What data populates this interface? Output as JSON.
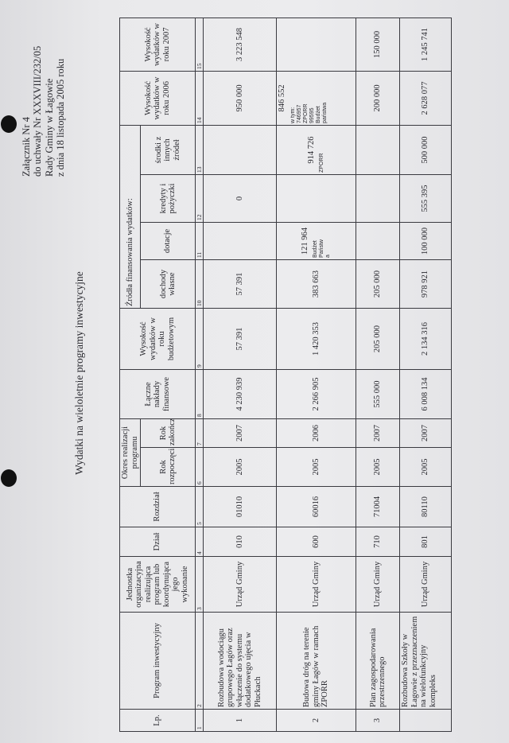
{
  "header": {
    "lines": [
      "Załącznik Nr 4",
      "do uchwały Nr XXXVIII/232/05",
      "Rady Gminy  w Łagowie",
      "z dnia 18 listopada 2005 roku"
    ],
    "title": "Wydatki na wieloletnie programy inwestycyjne"
  },
  "table": {
    "columns": {
      "lp": "Lp.",
      "program": "Program inwestycyjny",
      "jednostka": "Jednostka organizacyjna realizująca program lub koordynująca jego wykonanie",
      "dzial": "Dział",
      "rozdzial": "Rozdział",
      "okres": "Okres realizacji programu",
      "rok_rozp": "Rok rozpoczęcia",
      "rok_zak": "Rok zakończenia",
      "laczne": "Łączne nakłady finansowe",
      "wys_budzet": "Wysokość wydatków w roku budżetowym",
      "zrodla": "Źródła finansowania wydatków:",
      "dochody": "dochody własne",
      "dotacje": "dotacje",
      "kredyty": "kredyty i pożyczki",
      "srodki": "środki z innych źródeł",
      "wys_2006": "Wysokość wydatków w roku 2006",
      "wys_2007": "Wysokość wydatków w roku 2007"
    },
    "numbers": [
      "1",
      "2",
      "3",
      "4",
      "5",
      "6",
      "7",
      "8",
      "9",
      "10",
      "11",
      "12",
      "13",
      "14",
      "15"
    ],
    "rows": [
      {
        "cells": [
          "1",
          "Rozbudowa wodociągu grupowego Łagów oraz włączenie do systemu dodatkowego ujęcia w Płuckach",
          "Urząd Gminy",
          "010",
          "01010",
          "2005",
          "2007",
          "4 230 939",
          "57 391",
          "57 391",
          "",
          "0",
          "",
          "950 000",
          "3 223 548"
        ],
        "notes": [
          "",
          "",
          "",
          "",
          "",
          "",
          "",
          "",
          "",
          "",
          "",
          "",
          "",
          "",
          ""
        ]
      },
      {
        "cells": [
          "2",
          "Budowa dróg na terenie gminy Łagów w ramach ZPORR",
          "Urząd Gminy",
          "600",
          "60016",
          "2005",
          "2006",
          "2 266 905",
          "1 420 353",
          "383 663",
          "121 964",
          "",
          "914 726",
          "846 552",
          ""
        ],
        "notes": [
          "",
          "",
          "",
          "",
          "",
          "",
          "",
          "",
          "",
          "",
          "Budżet\nPaństw\na",
          "",
          "ZPORR",
          "w tym:\n746957\nZPORR\n99595\nBudżet\npaństwa",
          ""
        ]
      },
      {
        "cells": [
          "3",
          "Plan zagospodarowania przestrzennego",
          "Urząd Gminy",
          "710",
          "71004",
          "2005",
          "2007",
          "555 000",
          "205 000",
          "205 000",
          "",
          "",
          "",
          "200 000",
          "150 000"
        ],
        "notes": [
          "",
          "",
          "",
          "",
          "",
          "",
          "",
          "",
          "",
          "",
          "",
          "",
          "",
          "",
          ""
        ]
      },
      {
        "cells": [
          "",
          "Rozbudowa Szkoły w Łagowie z przeznaczeniem na wielofunkcyjny kompleks",
          "Urząd Gminy",
          "801",
          "80110",
          "2005",
          "2007",
          "6 008 134",
          "2 134 316",
          "978 921",
          "100 000",
          "555 395",
          "500 000",
          "2 628 077",
          "1 245 741"
        ],
        "notes": [
          "",
          "",
          "",
          "",
          "",
          "",
          "",
          "",
          "",
          "",
          "",
          "",
          "",
          "",
          ""
        ]
      }
    ]
  }
}
